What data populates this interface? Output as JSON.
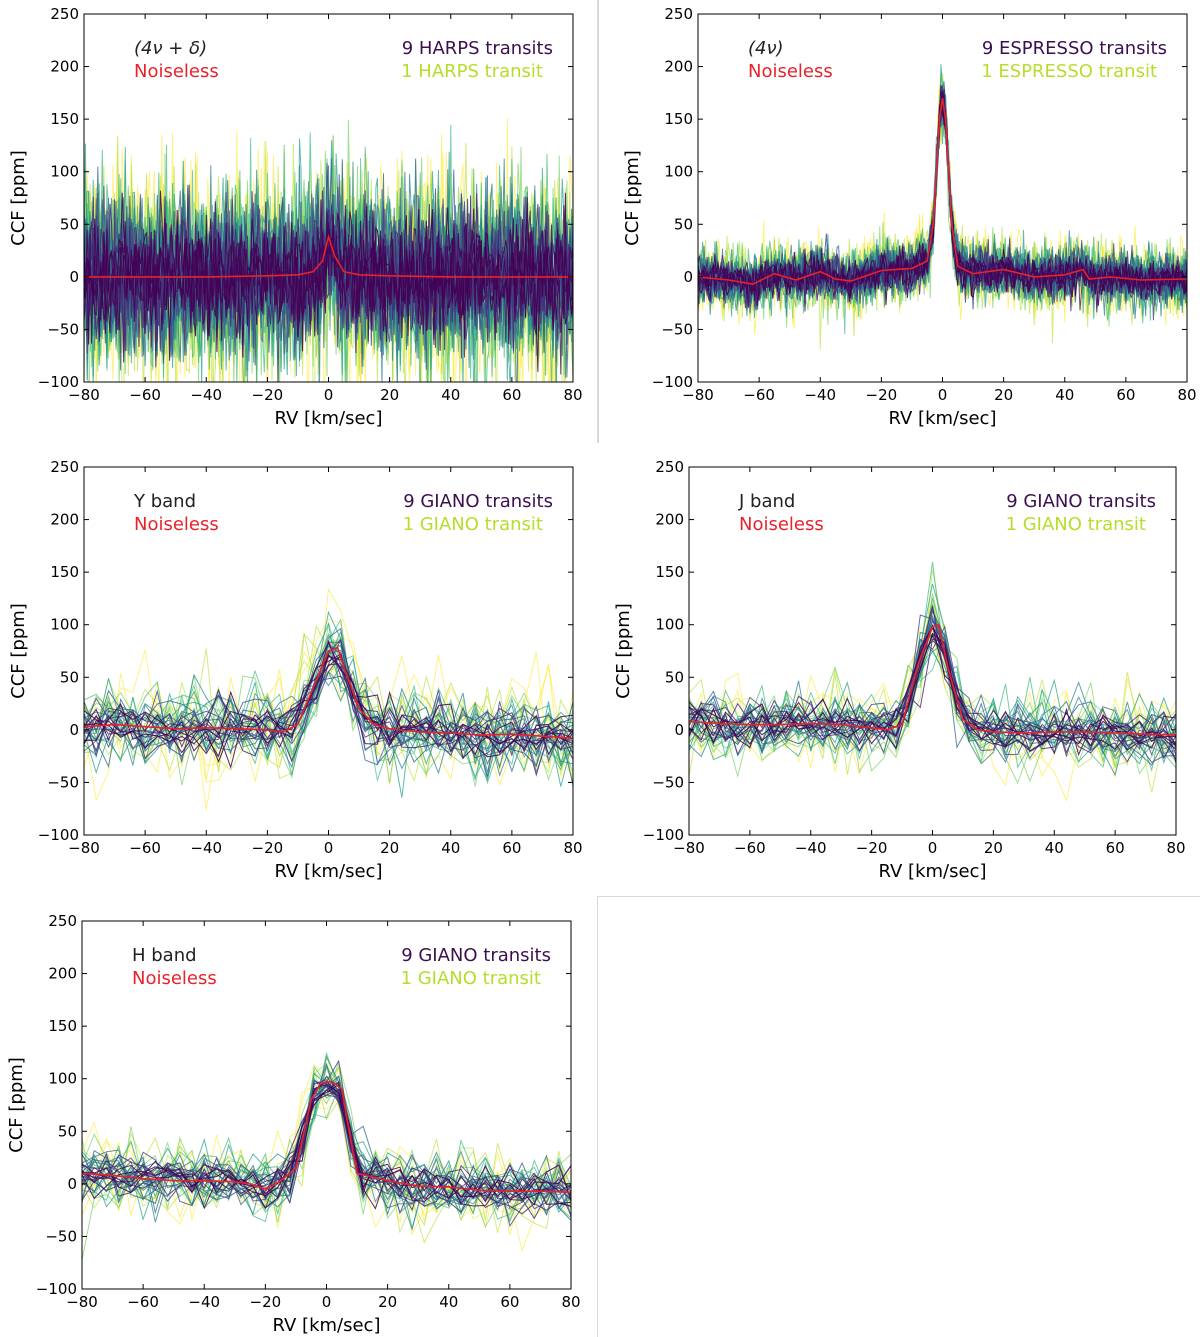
{
  "colors": {
    "multi_transit": "#3b0f50",
    "single_transit": "#b5de2b",
    "noiseless": "#e8222a",
    "title": "#222222",
    "axis": "#000000"
  },
  "chart_data": [
    {
      "id": "harps",
      "type": "line",
      "title": "(4ν + δ)",
      "title_is_math": true,
      "noiseless_label": "Noiseless",
      "legend": [
        "9 HARPS transits",
        "1 HARPS transit"
      ],
      "xlabel": "RV [km/sec]",
      "ylabel": "CCF [ppm]",
      "xlim": [
        -80,
        80
      ],
      "ylim": [
        -100,
        250
      ],
      "xticks": [
        "−80",
        "−60",
        "−40",
        "−20",
        "0",
        "20",
        "40",
        "60",
        "80"
      ],
      "yticks": [
        "−100",
        "−50",
        "0",
        "50",
        "100",
        "150",
        "200",
        "250"
      ],
      "series": [
        {
          "name": "Noiseless",
          "x": [
            -80,
            -60,
            -40,
            -20,
            -10,
            -5,
            -2,
            0,
            2,
            5,
            10,
            20,
            40,
            60,
            80
          ],
          "y": [
            0,
            0,
            0,
            1,
            2,
            5,
            15,
            38,
            20,
            5,
            2,
            1,
            0,
            0,
            0
          ]
        }
      ],
      "noise": {
        "x_step": 0.5,
        "sigma_single": 55,
        "sigma_multi": 25,
        "n_single": 10,
        "n_multi": 22
      }
    },
    {
      "id": "espresso",
      "type": "line",
      "title": "(4ν)",
      "title_is_math": true,
      "noiseless_label": "Noiseless",
      "legend": [
        "9 ESPRESSO transits",
        "1 ESPRESSO transit"
      ],
      "xlabel": "RV [km/sec]",
      "ylabel": "CCF [ppm]",
      "xlim": [
        -80,
        80
      ],
      "ylim": [
        -100,
        250
      ],
      "xticks": [
        "−80",
        "−60",
        "−40",
        "−20",
        "0",
        "20",
        "40",
        "60",
        "80"
      ],
      "yticks": [
        "−100",
        "−50",
        "0",
        "50",
        "100",
        "150",
        "200",
        "250"
      ],
      "series": [
        {
          "name": "Noiseless",
          "x": [
            -80,
            -70,
            -62,
            -55,
            -48,
            -40,
            -35,
            -30,
            -20,
            -10,
            -5,
            -3,
            -1,
            0,
            1,
            3,
            5,
            10,
            20,
            30,
            40,
            46,
            48,
            55,
            65,
            80
          ],
          "y": [
            0,
            -3,
            -7,
            3,
            -3,
            5,
            -2,
            -4,
            6,
            8,
            15,
            50,
            150,
            170,
            150,
            50,
            10,
            3,
            7,
            0,
            2,
            7,
            -2,
            0,
            -3,
            -2
          ]
        }
      ],
      "noise": {
        "x_step": 0.5,
        "sigma_single": 18,
        "sigma_multi": 8,
        "n_single": 10,
        "n_multi": 22
      }
    },
    {
      "id": "y_band",
      "type": "line",
      "title": "Y band",
      "title_is_math": false,
      "noiseless_label": "Noiseless",
      "legend": [
        "9 GIANO transits",
        "1 GIANO transit"
      ],
      "xlabel": "RV [km/sec]",
      "ylabel": "CCF [ppm]",
      "xlim": [
        -80,
        80
      ],
      "ylim": [
        -100,
        250
      ],
      "xticks": [
        "−80",
        "−60",
        "−40",
        "−20",
        "0",
        "20",
        "40",
        "60",
        "80"
      ],
      "yticks": [
        "−100",
        "−50",
        "0",
        "50",
        "100",
        "150",
        "200",
        "250"
      ],
      "series": [
        {
          "name": "Noiseless",
          "x": [
            -80,
            -70,
            -60,
            -50,
            -40,
            -30,
            -20,
            -15,
            -10,
            -5,
            0,
            3,
            5,
            10,
            15,
            20,
            30,
            40,
            50,
            60,
            70,
            80
          ],
          "y": [
            3,
            5,
            3,
            1,
            2,
            1,
            0,
            -2,
            5,
            40,
            75,
            78,
            60,
            20,
            5,
            1,
            -2,
            -3,
            -5,
            -4,
            -6,
            -8
          ]
        }
      ],
      "noise": {
        "x_step": 4,
        "sigma_single": 28,
        "sigma_multi": 11,
        "n_single": 12,
        "n_multi": 30
      }
    },
    {
      "id": "j_band",
      "type": "line",
      "title": "J band",
      "title_is_math": false,
      "noiseless_label": "Noiseless",
      "legend": [
        "9 GIANO transits",
        "1 GIANO transit"
      ],
      "xlabel": "RV [km/sec]",
      "ylabel": "CCF [ppm]",
      "xlim": [
        -80,
        80
      ],
      "ylim": [
        -100,
        250
      ],
      "xticks": [
        "−80",
        "−60",
        "−40",
        "−20",
        "0",
        "20",
        "40",
        "60",
        "80"
      ],
      "yticks": [
        "−100",
        "−50",
        "0",
        "50",
        "100",
        "150",
        "200",
        "250"
      ],
      "series": [
        {
          "name": "Noiseless",
          "x": [
            -80,
            -70,
            -60,
            -50,
            -40,
            -30,
            -20,
            -15,
            -10,
            -5,
            0,
            2,
            5,
            10,
            15,
            20,
            30,
            40,
            50,
            60,
            70,
            80
          ],
          "y": [
            8,
            6,
            5,
            5,
            6,
            5,
            2,
            0,
            5,
            60,
            98,
            100,
            60,
            10,
            0,
            -2,
            -3,
            -2,
            -2,
            -3,
            -4,
            -5
          ]
        }
      ],
      "noise": {
        "x_step": 4,
        "sigma_single": 22,
        "sigma_multi": 10,
        "n_single": 12,
        "n_multi": 30
      }
    },
    {
      "id": "h_band",
      "type": "line",
      "title": "H band",
      "title_is_math": false,
      "noiseless_label": "Noiseless",
      "legend": [
        "9 GIANO transits",
        "1 GIANO transit"
      ],
      "xlabel": "RV [km/sec]",
      "ylabel": "CCF [ppm]",
      "xlim": [
        -80,
        80
      ],
      "ylim": [
        -100,
        250
      ],
      "xticks": [
        "−80",
        "−60",
        "−40",
        "−20",
        "0",
        "20",
        "40",
        "60",
        "80"
      ],
      "yticks": [
        "−100",
        "−50",
        "0",
        "50",
        "100",
        "150",
        "200",
        "250"
      ],
      "series": [
        {
          "name": "Noiseless",
          "x": [
            -80,
            -70,
            -60,
            -50,
            -40,
            -30,
            -25,
            -20,
            -15,
            -10,
            -5,
            -2,
            0,
            2,
            5,
            8,
            10,
            20,
            30,
            40,
            50,
            60,
            70,
            80
          ],
          "y": [
            10,
            8,
            5,
            3,
            3,
            2,
            0,
            -5,
            3,
            15,
            80,
            95,
            97,
            97,
            90,
            40,
            10,
            3,
            -2,
            -3,
            -6,
            -7,
            -7,
            -8
          ]
        }
      ],
      "noise": {
        "x_step": 4,
        "sigma_single": 22,
        "sigma_multi": 9,
        "n_single": 12,
        "n_multi": 30
      }
    }
  ]
}
